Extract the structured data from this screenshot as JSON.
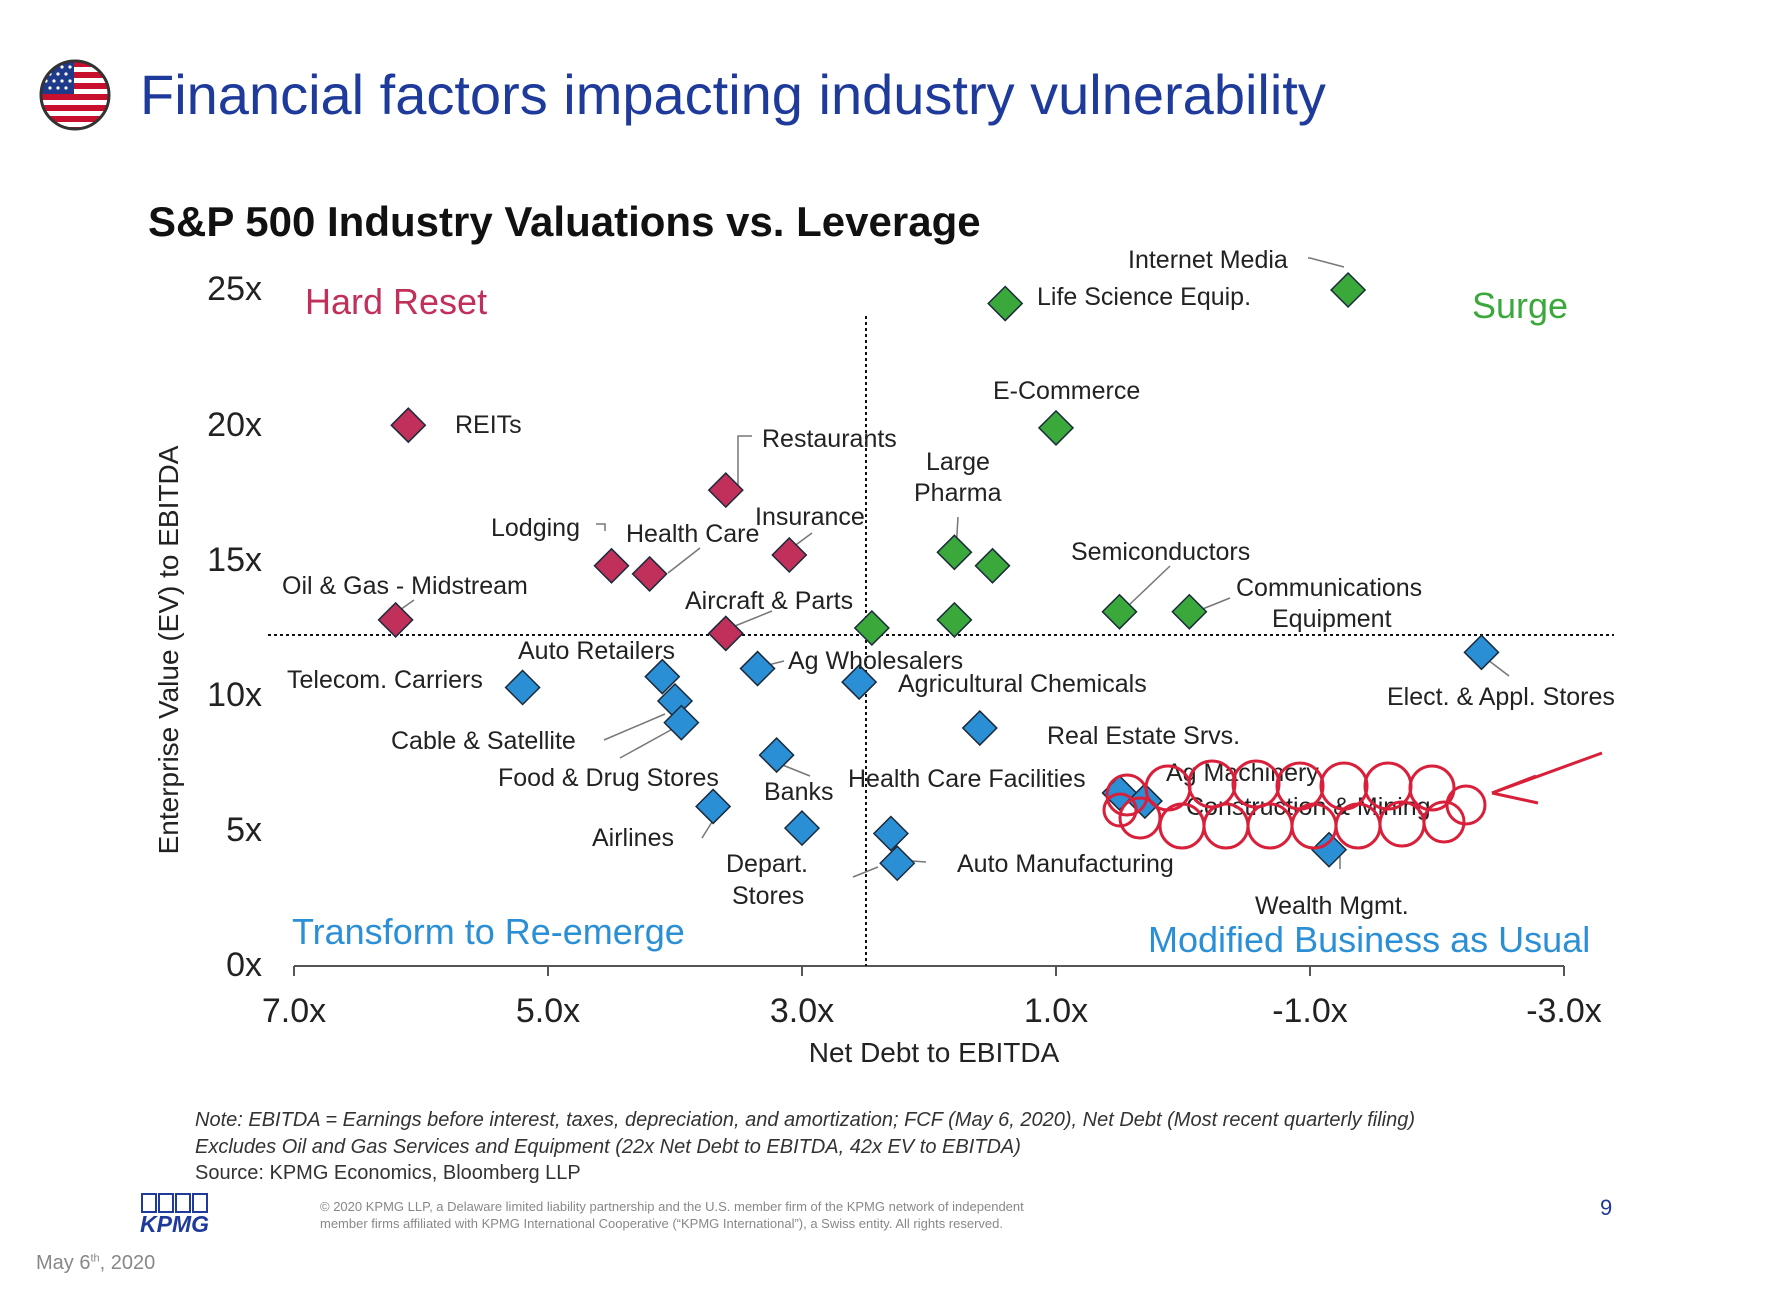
{
  "slide": {
    "title": "Financial factors impacting industry vulnerability",
    "note_line1": "Note: EBITDA = Earnings before interest, taxes, depreciation, and amortization; FCF (May 6, 2020), Net Debt (Most recent quarterly filing)",
    "note_line2": "Excludes Oil and Gas Services and Equipment (22x Net Debt to EBITDA, 42x EV to EBITDA)",
    "source": "Source: KPMG Economics, Bloomberg LLP",
    "legal_line1": "© 2020 KPMG LLP, a Delaware limited liability partnership and the U.S. member firm of the KPMG network of independent",
    "legal_line2": "member firms affiliated with KPMG International Cooperative (“KPMG International”), a Swiss entity. All rights reserved.",
    "page_number": "9",
    "date": "May 6th, 2020",
    "logo_text": "KPMG",
    "flag_icon": "us-flag-icon"
  },
  "chart_data": {
    "type": "scatter",
    "title": "S&P 500 Industry Valuations vs. Leverage",
    "xlabel": "Net Debt to EBITDA",
    "ylabel": "Enterprise Value (EV) to EBITDA",
    "xlim": [
      7.0,
      -3.0
    ],
    "ylim": [
      0,
      25
    ],
    "x_reversed": true,
    "x_ticks": [
      "7.0x",
      "5.0x",
      "3.0x",
      "1.0x",
      "-1.0x",
      "-3.0x"
    ],
    "x_tick_values": [
      7,
      5,
      3,
      1,
      -1,
      -3
    ],
    "y_ticks": [
      "0x",
      "5x",
      "10x",
      "15x",
      "20x",
      "25x"
    ],
    "y_tick_values": [
      0,
      5,
      10,
      15,
      20,
      25
    ],
    "divider_x": 2.55,
    "divider_y": 12.5,
    "quadrants": [
      {
        "label": "Hard Reset",
        "color": "#c0305a",
        "position": "top-left"
      },
      {
        "label": "Surge",
        "color": "#3aa83a",
        "position": "top-right"
      },
      {
        "label": "Transform to Re-emerge",
        "color": "#2b8fd6",
        "position": "bottom-left"
      },
      {
        "label": "Modified Business as Usual",
        "color": "#2b8fd6",
        "position": "bottom-right"
      }
    ],
    "colors": {
      "Hard Reset": "#c0305a",
      "Surge": "#3aa83a",
      "Transform to Re-emerge": "#2b8fd6",
      "Modified Business as Usual": "#2b8fd6"
    },
    "points": [
      {
        "x": 6.1,
        "y": 20.0,
        "group": "Hard Reset"
      },
      {
        "x": 3.6,
        "y": 17.6,
        "group": "Hard Reset"
      },
      {
        "x": 4.5,
        "y": 14.8,
        "group": "Hard Reset"
      },
      {
        "x": 4.2,
        "y": 14.5,
        "group": "Hard Reset"
      },
      {
        "x": 3.1,
        "y": 15.2,
        "group": "Hard Reset"
      },
      {
        "x": 6.2,
        "y": 12.8,
        "group": "Hard Reset"
      },
      {
        "x": 3.6,
        "y": 12.3,
        "group": "Hard Reset"
      },
      {
        "x": -1.3,
        "y": 25.0,
        "group": "Surge"
      },
      {
        "x": 1.4,
        "y": 24.5,
        "group": "Surge"
      },
      {
        "x": 1.0,
        "y": 19.9,
        "group": "Surge"
      },
      {
        "x": 1.8,
        "y": 15.3,
        "group": "Surge"
      },
      {
        "x": 1.5,
        "y": 14.8,
        "group": "Surge"
      },
      {
        "x": 1.8,
        "y": 12.8,
        "group": "Surge"
      },
      {
        "x": 2.45,
        "y": 12.5,
        "group": "Surge"
      },
      {
        "x": 0.5,
        "y": 13.1,
        "group": "Surge"
      },
      {
        "x": -0.05,
        "y": 13.1,
        "group": "Surge"
      },
      {
        "x": 5.2,
        "y": 10.3,
        "group": "Transform to Re-emerge"
      },
      {
        "x": 4.1,
        "y": 10.7,
        "group": "Transform to Re-emerge"
      },
      {
        "x": 4.0,
        "y": 9.8,
        "group": "Transform to Re-emerge"
      },
      {
        "x": 3.95,
        "y": 9.0,
        "group": "Transform to Re-emerge"
      },
      {
        "x": 3.35,
        "y": 11.0,
        "group": "Transform to Re-emerge"
      },
      {
        "x": 2.55,
        "y": 10.5,
        "group": "Transform to Re-emerge"
      },
      {
        "x": 3.2,
        "y": 7.8,
        "group": "Transform to Re-emerge"
      },
      {
        "x": 3.7,
        "y": 5.9,
        "group": "Transform to Re-emerge"
      },
      {
        "x": 3.0,
        "y": 5.1,
        "group": "Transform to Re-emerge"
      },
      {
        "x": 2.3,
        "y": 4.9,
        "group": "Modified Business as Usual"
      },
      {
        "x": 2.25,
        "y": 3.8,
        "group": "Modified Business as Usual"
      },
      {
        "x": 1.6,
        "y": 8.8,
        "group": "Modified Business as Usual"
      },
      {
        "x": 0.5,
        "y": 6.4,
        "group": "Modified Business as Usual"
      },
      {
        "x": 0.3,
        "y": 6.1,
        "group": "Modified Business as Usual"
      },
      {
        "x": -1.15,
        "y": 4.3,
        "group": "Modified Business as Usual"
      },
      {
        "x": -2.35,
        "y": 11.6,
        "group": "Modified Business as Usual"
      }
    ],
    "point_labels": [
      {
        "text": "REITs"
      },
      {
        "text": "Restaurants"
      },
      {
        "text": "Lodging"
      },
      {
        "text": "Health Care"
      },
      {
        "text": "Insurance"
      },
      {
        "text": "Oil & Gas - Midstream"
      },
      {
        "text": "Aircraft & Parts"
      },
      {
        "text": "Internet Media"
      },
      {
        "text": "Life Science Equip."
      },
      {
        "text": "E-Commerce"
      },
      {
        "text": "Large"
      },
      {
        "text": "Pharma"
      },
      {
        "text": "Semiconductors"
      },
      {
        "text": "Communications"
      },
      {
        "text": "Equipment"
      },
      {
        "text": "Telecom. Carriers"
      },
      {
        "text": "Auto Retailers"
      },
      {
        "text": "Cable & Satellite"
      },
      {
        "text": "Food & Drug Stores"
      },
      {
        "text": "Ag Wholesalers"
      },
      {
        "text": "Agricultural Chemicals"
      },
      {
        "text": "Banks"
      },
      {
        "text": "Airlines"
      },
      {
        "text": "Depart."
      },
      {
        "text": "Stores"
      },
      {
        "text": "Health Care Facilities"
      },
      {
        "text": "Auto Manufacturing"
      },
      {
        "text": "Real Estate Srvs."
      },
      {
        "text": "Ag Machinery"
      },
      {
        "text": "Construction & Mining"
      },
      {
        "text": "Wealth Mgmt."
      },
      {
        "text": "Elect. & Appl. Stores"
      }
    ]
  }
}
